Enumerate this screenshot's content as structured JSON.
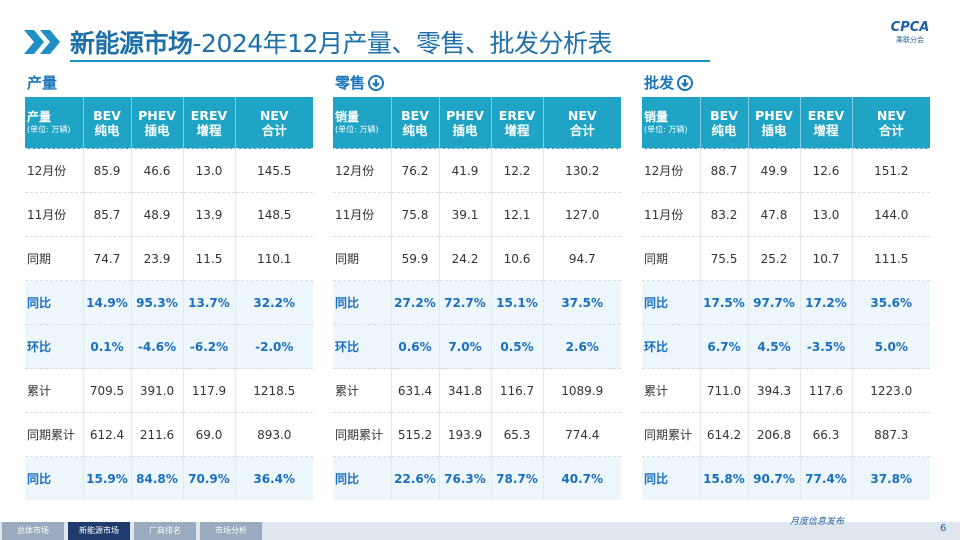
{
  "header": {
    "title_main": "新能源市场",
    "title_rest": "-2024年12月产量、零售、批发分析表",
    "logo": "CPCA",
    "logo_sub": "乘联分会"
  },
  "tables": [
    {
      "section": "产量",
      "corner": [
        "产量",
        "(单位: 万辆)"
      ],
      "columns": [
        [
          "BEV",
          "纯电"
        ],
        [
          "PHEV",
          "插电"
        ],
        [
          "EREV",
          "增程"
        ],
        [
          "NEV",
          "合计"
        ]
      ],
      "rows": [
        [
          "12月份",
          "85.9",
          "46.6",
          "13.0",
          "145.5"
        ],
        [
          "11月份",
          "85.7",
          "48.9",
          "13.9",
          "148.5"
        ],
        [
          "同期",
          "74.7",
          "23.9",
          "11.5",
          "110.1"
        ],
        [
          "同比",
          "14.9%",
          "95.3%",
          "13.7%",
          "32.2%"
        ],
        [
          "环比",
          "0.1%",
          "-4.6%",
          "-6.2%",
          "-2.0%"
        ],
        [
          "累计",
          "709.5",
          "391.0",
          "117.9",
          "1218.5"
        ],
        [
          "同期累计",
          "612.4",
          "211.6",
          "69.0",
          "893.0"
        ],
        [
          "同比",
          "15.9%",
          "84.8%",
          "70.9%",
          "36.4%"
        ]
      ]
    },
    {
      "section": "零售",
      "corner": [
        "销量",
        "(单位: 万辆)"
      ],
      "columns": [
        [
          "BEV",
          "纯电"
        ],
        [
          "PHEV",
          "插电"
        ],
        [
          "EREV",
          "增程"
        ],
        [
          "NEV",
          "合计"
        ]
      ],
      "rows": [
        [
          "12月份",
          "76.2",
          "41.9",
          "12.2",
          "130.2"
        ],
        [
          "11月份",
          "75.8",
          "39.1",
          "12.1",
          "127.0"
        ],
        [
          "同期",
          "59.9",
          "24.2",
          "10.6",
          "94.7"
        ],
        [
          "同比",
          "27.2%",
          "72.7%",
          "15.1%",
          "37.5%"
        ],
        [
          "环比",
          "0.6%",
          "7.0%",
          "0.5%",
          "2.6%"
        ],
        [
          "累计",
          "631.4",
          "341.8",
          "116.7",
          "1089.9"
        ],
        [
          "同期累计",
          "515.2",
          "193.9",
          "65.3",
          "774.4"
        ],
        [
          "同比",
          "22.6%",
          "76.3%",
          "78.7%",
          "40.7%"
        ]
      ]
    },
    {
      "section": "批发",
      "corner": [
        "销量",
        "(单位: 万辆)"
      ],
      "columns": [
        [
          "BEV",
          "纯电"
        ],
        [
          "PHEV",
          "插电"
        ],
        [
          "EREV",
          "增程"
        ],
        [
          "NEV",
          "合计"
        ]
      ],
      "rows": [
        [
          "12月份",
          "88.7",
          "49.9",
          "12.6",
          "151.2"
        ],
        [
          "11月份",
          "83.2",
          "47.8",
          "13.0",
          "144.0"
        ],
        [
          "同期",
          "75.5",
          "25.2",
          "10.7",
          "111.5"
        ],
        [
          "同比",
          "17.5%",
          "97.7%",
          "17.2%",
          "35.6%"
        ],
        [
          "环比",
          "6.7%",
          "4.5%",
          "-3.5%",
          "5.0%"
        ],
        [
          "累计",
          "711.0",
          "394.3",
          "117.6",
          "1223.0"
        ],
        [
          "同期累计",
          "614.2",
          "206.8",
          "66.3",
          "887.3"
        ],
        [
          "同比",
          "15.8%",
          "90.7%",
          "77.4%",
          "37.8%"
        ]
      ]
    }
  ],
  "footer": {
    "tabs": [
      "总体市场",
      "新能源市场",
      "厂商排名",
      "市场分析"
    ],
    "note": "月度信息发布",
    "page": "6"
  }
}
